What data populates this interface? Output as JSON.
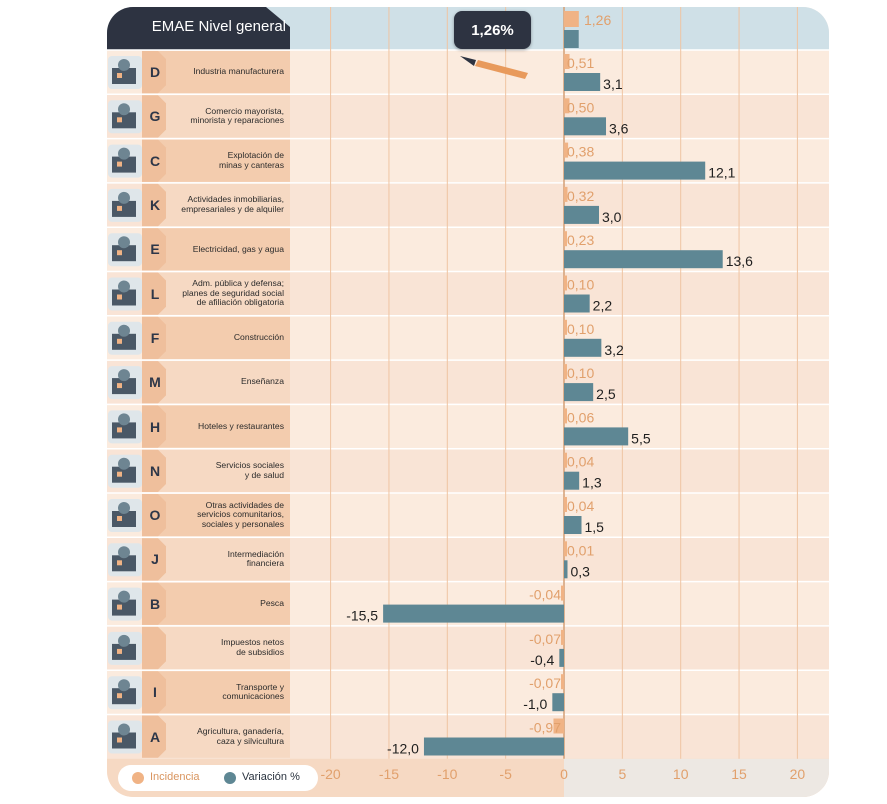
{
  "header": {
    "title": "EMAE Nivel general",
    "callout": "1,26%"
  },
  "legend": {
    "incidencia_label": "Incidencia",
    "variacion_label": "Variación %"
  },
  "colors": {
    "incidencia": "#f0b385",
    "variacion": "#5e8794",
    "header_dark": "#2d3341",
    "header_light": "#cfe0e7"
  },
  "chart_data": {
    "type": "bar",
    "orientation": "horizontal",
    "xlim": [
      -22,
      22.5
    ],
    "xticks": [
      -20,
      -15,
      -10,
      -5,
      0,
      5,
      10,
      15,
      20
    ],
    "header_row": {
      "label": "EMAE Nivel general",
      "incidencia": "1,26",
      "incidencia_value": 1.26,
      "variacion_value": 1.26
    },
    "rows": [
      {
        "letter": "D",
        "label": "Industria manufacturera",
        "incidencia": "0,51",
        "variacion": "3,1",
        "inc_value": 0.51,
        "var_value": 3.1
      },
      {
        "letter": "G",
        "label": "Comercio mayorista,\nminorista y reparaciones",
        "incidencia": "0,50",
        "variacion": "3,6",
        "inc_value": 0.5,
        "var_value": 3.6
      },
      {
        "letter": "C",
        "label": "Explotación de\nminas y canteras",
        "incidencia": "0,38",
        "variacion": "12,1",
        "inc_value": 0.38,
        "var_value": 12.1
      },
      {
        "letter": "K",
        "label": "Actividades inmobiliarias,\nempresariales y de alquiler",
        "incidencia": "0,32",
        "variacion": "3,0",
        "inc_value": 0.32,
        "var_value": 3.0
      },
      {
        "letter": "E",
        "label": "Electricidad, gas y agua",
        "incidencia": "0,23",
        "variacion": "13,6",
        "inc_value": 0.23,
        "var_value": 13.6
      },
      {
        "letter": "L",
        "label": "Adm. pública y defensa;\nplanes de seguridad social\nde afiliación obligatoria",
        "incidencia": "0,10",
        "variacion": "2,2",
        "inc_value": 0.1,
        "var_value": 2.2
      },
      {
        "letter": "F",
        "label": "Construcción",
        "incidencia": "0,10",
        "variacion": "3,2",
        "inc_value": 0.1,
        "var_value": 3.2
      },
      {
        "letter": "M",
        "label": "Enseñanza",
        "incidencia": "0,10",
        "variacion": "2,5",
        "inc_value": 0.1,
        "var_value": 2.5
      },
      {
        "letter": "H",
        "label": "Hoteles y restaurantes",
        "incidencia": "0,06",
        "variacion": "5,5",
        "inc_value": 0.06,
        "var_value": 5.5
      },
      {
        "letter": "N",
        "label": "Servicios sociales\ny de salud",
        "incidencia": "0,04",
        "variacion": "1,3",
        "inc_value": 0.04,
        "var_value": 1.3
      },
      {
        "letter": "O",
        "label": "Otras actividades de\nservicios comunitarios,\nsociales y personales",
        "incidencia": "0,04",
        "variacion": "1,5",
        "inc_value": 0.04,
        "var_value": 1.5
      },
      {
        "letter": "J",
        "label": "Intermediación\nfinanciera",
        "incidencia": "0,01",
        "variacion": "0,3",
        "inc_value": 0.01,
        "var_value": 0.3
      },
      {
        "letter": "B",
        "label": "Pesca",
        "incidencia": "-0,04",
        "variacion": "-15,5",
        "inc_value": -0.04,
        "var_value": -15.5
      },
      {
        "letter": "",
        "label": "Impuestos netos\nde subsidios",
        "incidencia": "-0,07",
        "variacion": "-0,4",
        "inc_value": -0.07,
        "var_value": -0.4
      },
      {
        "letter": "I",
        "label": "Transporte y\ncomunicaciones",
        "incidencia": "-0,07",
        "variacion": "-1,0",
        "inc_value": -0.07,
        "var_value": -1.0
      },
      {
        "letter": "A",
        "label": "Agricultura, ganadería,\ncaza y silvicultura",
        "incidencia": "-0,97",
        "variacion": "-12,0",
        "inc_value": -0.97,
        "var_value": -12.0
      }
    ]
  }
}
